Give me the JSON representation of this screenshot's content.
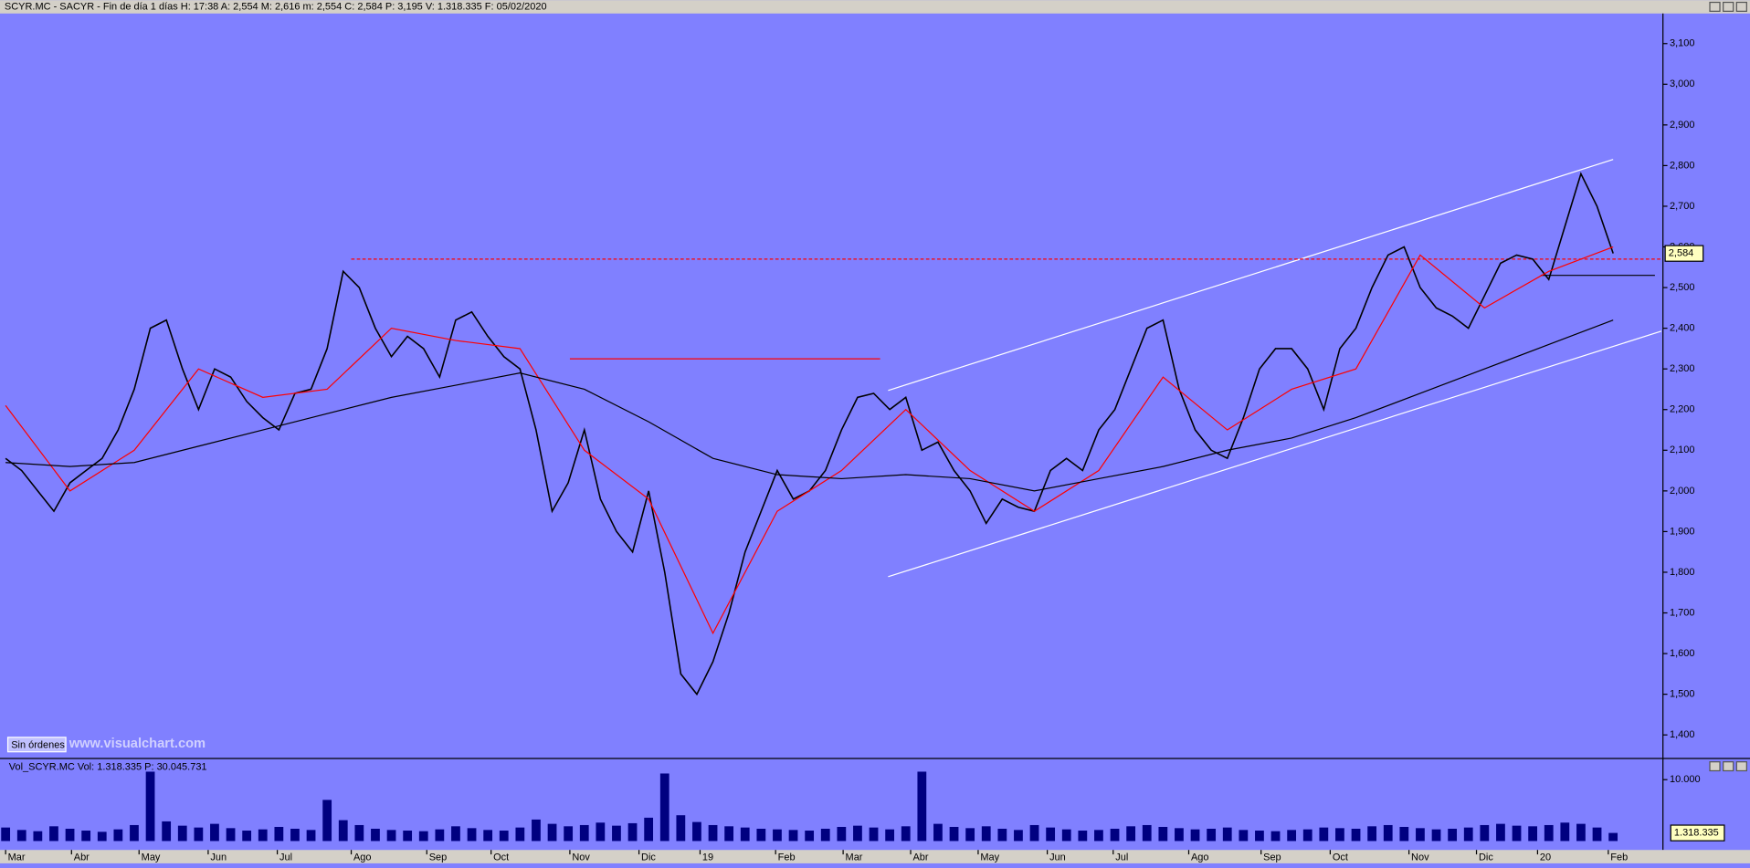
{
  "chart_data": [
    {
      "type": "line",
      "title": "SCYR.MC - SACYR - Fin de día 1 días H: 17:38 A: 2,554 M: 2,616 m: 2,554 C: 2,584 P: 3,195 V: 1.318.335 F: 05/02/2020",
      "xlim": [
        -0.35,
        103.1
      ],
      "ylim": [
        1342,
        3174
      ],
      "yticks": [
        {
          "value": 1400,
          "label": "1,400"
        },
        {
          "value": 1500,
          "label": "1,500"
        },
        {
          "value": 1600,
          "label": "1,600"
        },
        {
          "value": 1700,
          "label": "1,700"
        },
        {
          "value": 1800,
          "label": "1,800"
        },
        {
          "value": 1900,
          "label": "1,900"
        },
        {
          "value": 2000,
          "label": "2,000"
        },
        {
          "value": 2100,
          "label": "2,100"
        },
        {
          "value": 2200,
          "label": "2,200"
        },
        {
          "value": 2300,
          "label": "2,300"
        },
        {
          "value": 2400,
          "label": "2,400"
        },
        {
          "value": 2500,
          "label": "2,500"
        },
        {
          "value": 2600,
          "label": "2,600"
        },
        {
          "value": 2700,
          "label": "2,700"
        },
        {
          "value": 2800,
          "label": "2,800"
        },
        {
          "value": 2900,
          "label": "2,900"
        },
        {
          "value": 3000,
          "label": "3,000"
        },
        {
          "value": 3100,
          "label": "3,100"
        }
      ],
      "series": [
        {
          "color": "#000000",
          "x": [
            0,
            1,
            2,
            3,
            4,
            5,
            6,
            7,
            8,
            9,
            10,
            11,
            12,
            13,
            14,
            15,
            16,
            17,
            18,
            19,
            20,
            21,
            22,
            23,
            24,
            25,
            26,
            27,
            28,
            29,
            30,
            31,
            32,
            33,
            34,
            35,
            36,
            37,
            38,
            39,
            40,
            41,
            42,
            43,
            44,
            45,
            46,
            47,
            48,
            49,
            50,
            51,
            52,
            53,
            54,
            55,
            56,
            57,
            58,
            59,
            60,
            61,
            62,
            63,
            64,
            65,
            66,
            67,
            68,
            69,
            70,
            71,
            72,
            73,
            74,
            75,
            76,
            77,
            78,
            79,
            80,
            81,
            82,
            83,
            84,
            85,
            86,
            87,
            88,
            89,
            90,
            91,
            92,
            93,
            94,
            95,
            96,
            97,
            98,
            99,
            100
          ],
          "values": [
            2080,
            2050,
            2000,
            1950,
            2020,
            2050,
            2080,
            2150,
            2250,
            2400,
            2420,
            2300,
            2200,
            2300,
            2280,
            2220,
            2180,
            2150,
            2240,
            2250,
            2350,
            2540,
            2500,
            2400,
            2330,
            2380,
            2350,
            2280,
            2420,
            2440,
            2380,
            2330,
            2300,
            2150,
            1950,
            2020,
            2150,
            1980,
            1900,
            1850,
            2000,
            1800,
            1550,
            1500,
            1580,
            1700,
            1850,
            1950,
            2050,
            1980,
            2000,
            2050,
            2150,
            2230,
            2240,
            2200,
            2230,
            2100,
            2120,
            2050,
            2000,
            1920,
            1980,
            1960,
            1950,
            2050,
            2080,
            2050,
            2150,
            2200,
            2300,
            2400,
            2420,
            2250,
            2150,
            2100,
            2080,
            2180,
            2300,
            2350,
            2350,
            2300,
            2200,
            2350,
            2400,
            2500,
            2580,
            2600,
            2500,
            2450,
            2430,
            2400,
            2480,
            2560,
            2580,
            2570,
            2520,
            2650,
            2780,
            2700,
            2584
          ]
        },
        {
          "color": "#ff0000",
          "x": [
            0,
            4,
            8,
            12,
            16,
            20,
            24,
            28,
            32,
            36,
            40,
            44,
            48,
            52,
            56,
            60,
            64,
            68,
            72,
            76,
            80,
            84,
            88,
            92,
            96,
            100
          ],
          "values": [
            2210,
            2000,
            2100,
            2300,
            2230,
            2250,
            2400,
            2370,
            2350,
            2100,
            1980,
            1650,
            1950,
            2050,
            2200,
            2050,
            1950,
            2050,
            2280,
            2150,
            2250,
            2300,
            2580,
            2450,
            2540,
            2600
          ]
        },
        {
          "color": "#000000",
          "x": [
            0,
            4,
            8,
            12,
            16,
            20,
            24,
            28,
            32,
            36,
            40,
            44,
            48,
            52,
            56,
            60,
            64,
            68,
            72,
            76,
            80,
            84,
            88,
            92,
            96,
            100
          ],
          "values": [
            2070,
            2060,
            2070,
            2110,
            2150,
            2190,
            2230,
            2260,
            2290,
            2250,
            2170,
            2080,
            2040,
            2030,
            2040,
            2030,
            2000,
            2030,
            2060,
            2100,
            2130,
            2180,
            2240,
            2300,
            2360,
            2420
          ]
        }
      ],
      "lines": [
        {
          "color": "#ffffff",
          "x": [
            54.9,
            100
          ],
          "values": [
            2247,
            2815
          ]
        },
        {
          "color": "#ffffff",
          "x": [
            54.9,
            103
          ],
          "values": [
            1789,
            2393
          ]
        },
        {
          "color": "#ff0000",
          "dashed": true,
          "x": [
            21.5,
            103
          ],
          "values": [
            2570,
            2570
          ]
        },
        {
          "color": "#ff0000",
          "x": [
            35.1,
            54.4
          ],
          "values": [
            2325,
            2325
          ]
        },
        {
          "color": "#000000",
          "x": [
            95.5,
            102.6
          ],
          "values": [
            2530,
            2530
          ]
        }
      ],
      "last_price": {
        "value": 2584,
        "label": "2,584"
      },
      "status": "Sin órdenes",
      "watermark": "www.visualchart.com"
    },
    {
      "type": "bar",
      "title": "Vol_SCYR.MC  Vol: 1.318.335  P: 30.045.731",
      "color": "#000080",
      "xlim": [
        -0.35,
        103.1
      ],
      "ylim": [
        0,
        12900
      ],
      "yticks": [
        {
          "value": 10000,
          "label": "10.000"
        }
      ],
      "x": [
        0,
        1,
        2,
        3,
        4,
        5,
        6,
        7,
        8,
        9,
        10,
        11,
        12,
        13,
        14,
        15,
        16,
        17,
        18,
        19,
        20,
        21,
        22,
        23,
        24,
        25,
        26,
        27,
        28,
        29,
        30,
        31,
        32,
        33,
        34,
        35,
        36,
        37,
        38,
        39,
        40,
        41,
        42,
        43,
        44,
        45,
        46,
        47,
        48,
        49,
        50,
        51,
        52,
        53,
        54,
        55,
        56,
        57,
        58,
        59,
        60,
        61,
        62,
        63,
        64,
        65,
        66,
        67,
        68,
        69,
        70,
        71,
        72,
        73,
        74,
        75,
        76,
        77,
        78,
        79,
        80,
        81,
        82,
        83,
        84,
        85,
        86,
        87,
        88,
        89,
        90,
        91,
        92,
        93,
        94,
        95,
        96,
        97,
        98,
        99,
        100
      ],
      "values": [
        2200,
        1800,
        1600,
        2400,
        2000,
        1700,
        1500,
        1900,
        2600,
        11300,
        3200,
        2500,
        2200,
        2800,
        2100,
        1700,
        1900,
        2300,
        2000,
        1800,
        6700,
        3400,
        2600,
        2000,
        1800,
        1700,
        1600,
        1900,
        2400,
        2100,
        1800,
        1700,
        2200,
        3500,
        2800,
        2400,
        2600,
        3000,
        2500,
        2900,
        3800,
        11000,
        4200,
        3100,
        2600,
        2400,
        2200,
        2000,
        1900,
        1800,
        1700,
        2000,
        2300,
        2500,
        2200,
        1900,
        2400,
        11300,
        2800,
        2300,
        2100,
        2400,
        2000,
        1800,
        2600,
        2200,
        1900,
        1700,
        1800,
        2000,
        2400,
        2600,
        2300,
        2100,
        1900,
        2000,
        2200,
        1800,
        1700,
        1600,
        1800,
        1900,
        2200,
        2100,
        2000,
        2400,
        2600,
        2300,
        2100,
        1900,
        2000,
        2200,
        2600,
        2800,
        2500,
        2400,
        2600,
        3000,
        2800,
        2200,
        1318.335
      ],
      "xticks": [
        {
          "value": 0,
          "label": "Mar"
        },
        {
          "value": 4.1,
          "label": "Abr"
        },
        {
          "value": 8.3,
          "label": "May"
        },
        {
          "value": 12.6,
          "label": "Jun"
        },
        {
          "value": 16.9,
          "label": "Jul"
        },
        {
          "value": 21.5,
          "label": "Ago"
        },
        {
          "value": 26.2,
          "label": "Sep"
        },
        {
          "value": 30.2,
          "label": "Oct"
        },
        {
          "value": 35.1,
          "label": "Nov"
        },
        {
          "value": 39.4,
          "label": "Dic"
        },
        {
          "value": 43.2,
          "label": "19"
        },
        {
          "value": 47.9,
          "label": "Feb"
        },
        {
          "value": 52.1,
          "label": "Mar"
        },
        {
          "value": 56.3,
          "label": "Abr"
        },
        {
          "value": 60.5,
          "label": "May"
        },
        {
          "value": 64.8,
          "label": "Jun"
        },
        {
          "value": 68.9,
          "label": "Jul"
        },
        {
          "value": 73.6,
          "label": "Ago"
        },
        {
          "value": 78.1,
          "label": "Sep"
        },
        {
          "value": 82.4,
          "label": "Oct"
        },
        {
          "value": 87.3,
          "label": "Nov"
        },
        {
          "value": 91.5,
          "label": "Dic"
        },
        {
          "value": 95.3,
          "label": "20"
        },
        {
          "value": 99.7,
          "label": "Feb"
        }
      ],
      "last_volume": {
        "value": 1318.335,
        "label": "1.318.335"
      }
    }
  ]
}
